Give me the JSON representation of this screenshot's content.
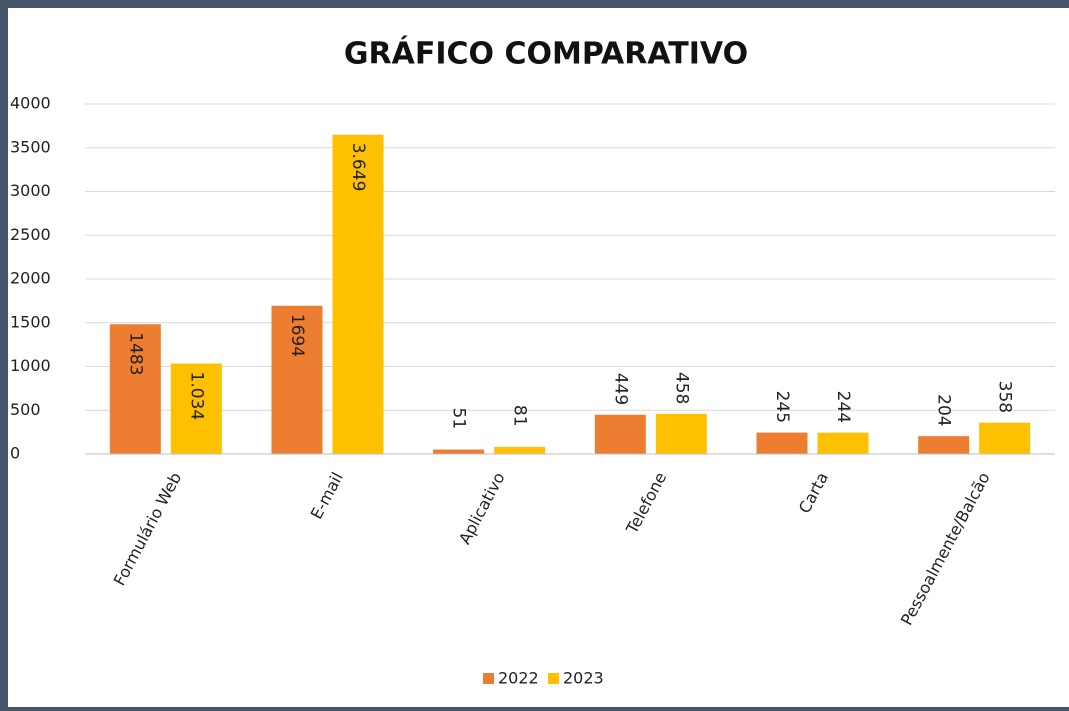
{
  "chart_data": {
    "type": "bar",
    "title": "GRÁFICO COMPARATIVO",
    "categories": [
      "Formulário Web",
      "E-mail",
      "Aplicativo",
      "Telefone",
      "Carta",
      "Pessoalmente/Balcão"
    ],
    "series": [
      {
        "name": "2022",
        "color": "#ed7d31",
        "values": [
          1483,
          1694,
          51,
          449,
          245,
          204
        ]
      },
      {
        "name": "2023",
        "color": "#ffc000",
        "values": [
          1034,
          3649,
          81,
          458,
          244,
          358
        ],
        "value_labels": [
          "1.034",
          "3.649",
          "81",
          "458",
          "244",
          "358"
        ]
      }
    ],
    "ylim": [
      0,
      4000
    ],
    "yticks": [
      0,
      500,
      1000,
      1500,
      2000,
      2500,
      3000,
      3500,
      4000
    ],
    "grid": true,
    "legend": "bottom"
  }
}
